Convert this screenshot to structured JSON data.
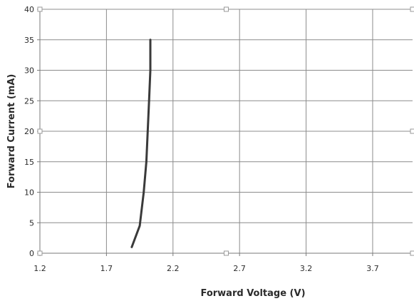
{
  "chart_data": {
    "type": "line",
    "title": "",
    "xlabel": "Forward Voltage (V)",
    "ylabel": "Forward Current (mA)",
    "xlim": [
      1.2,
      4.0
    ],
    "ylim": [
      0,
      40
    ],
    "x_ticks": [
      1.2,
      1.7,
      2.2,
      2.7,
      3.2,
      3.7
    ],
    "x_tick_labels": [
      "1.2",
      "1.7",
      "2.2",
      "2.7",
      "3.2",
      "3.7"
    ],
    "y_ticks": [
      0,
      5,
      10,
      15,
      20,
      25,
      30,
      35,
      40
    ],
    "y_tick_labels": [
      "0",
      "5",
      "10",
      "15",
      "20",
      "25",
      "30",
      "35",
      "40"
    ],
    "grid": true,
    "legend": "none",
    "series": [
      {
        "color": "#3a3a3a",
        "x": [
          1.89,
          1.95,
          1.98,
          2.0,
          2.01,
          2.02,
          2.03,
          2.03
        ],
        "y": [
          1,
          4.5,
          10,
          15,
          20,
          25,
          30,
          35
        ]
      }
    ]
  }
}
